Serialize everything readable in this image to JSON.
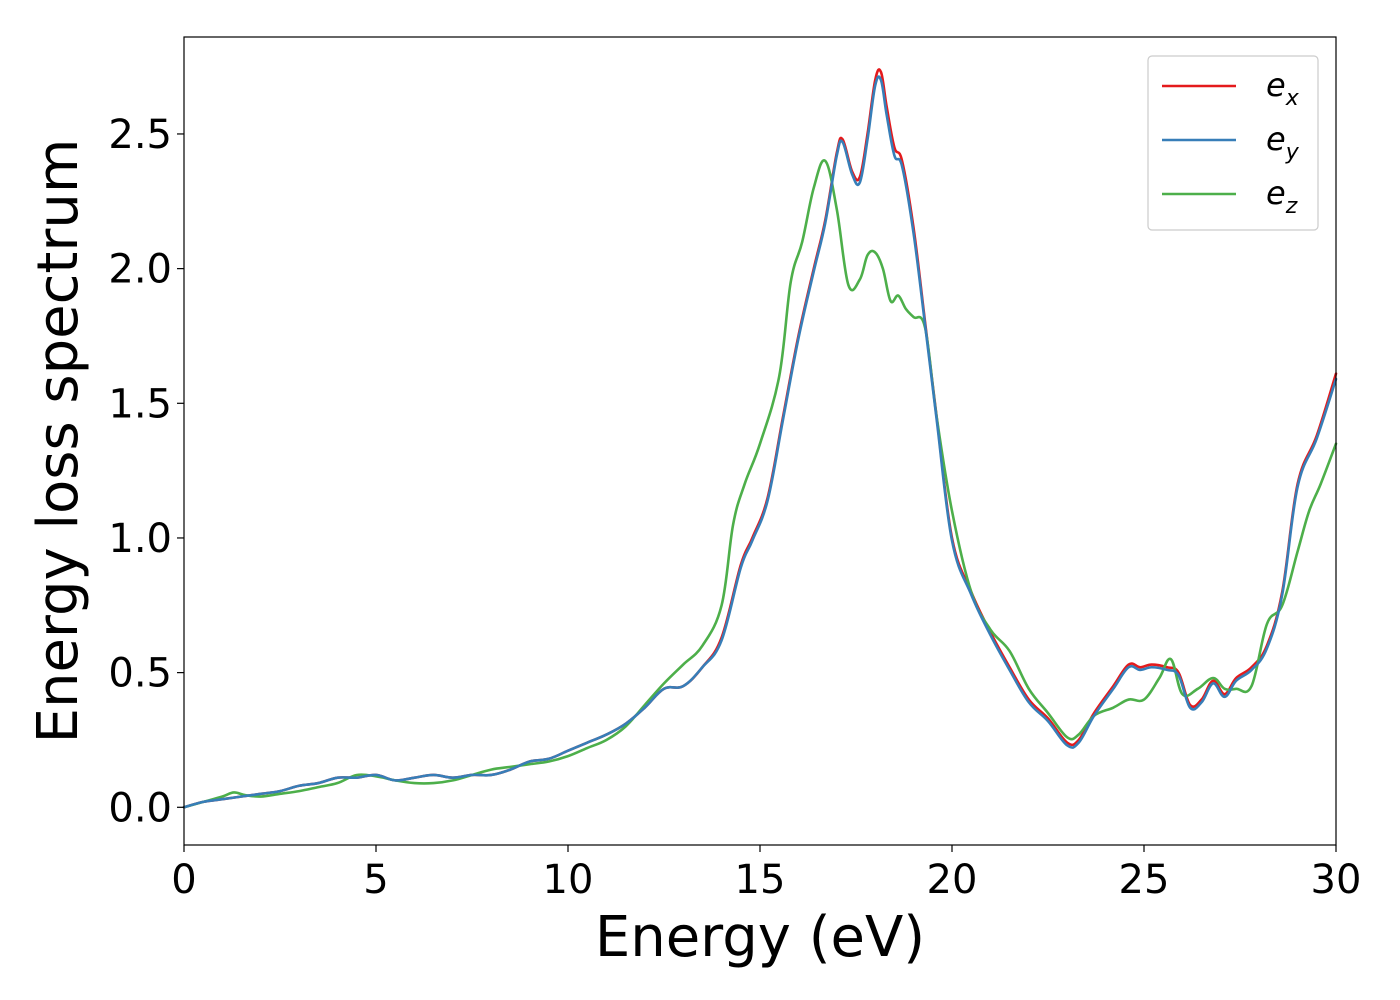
{
  "chart_data": {
    "type": "line",
    "title": "",
    "xlabel": "Energy (eV)",
    "ylabel": "Energy loss spectrum",
    "xlim": [
      0,
      30
    ],
    "ylim": [
      -0.14,
      2.86
    ],
    "xticks": [
      0,
      5,
      10,
      15,
      20,
      25,
      30
    ],
    "xtick_labels": [
      "0",
      "5",
      "10",
      "15",
      "20",
      "25",
      "30"
    ],
    "yticks": [
      0.0,
      0.5,
      1.0,
      1.5,
      2.0,
      2.5
    ],
    "ytick_labels": [
      "0.0",
      "0.5",
      "1.0",
      "1.5",
      "2.0",
      "2.5"
    ],
    "grid": false,
    "legend_position": "top-right",
    "series": [
      {
        "name": "e_x",
        "legend_base": "e",
        "legend_sub": "x",
        "color": "#e41a1c",
        "x": [
          0,
          0.5,
          1,
          1.5,
          2,
          2.5,
          3,
          3.5,
          4,
          4.5,
          5,
          5.5,
          6,
          6.5,
          7,
          7.5,
          8,
          8.5,
          9,
          9.5,
          10,
          10.5,
          11,
          11.5,
          12,
          12.5,
          13,
          13.5,
          14,
          14.5,
          14.8,
          15.2,
          15.6,
          16,
          16.4,
          16.7,
          17,
          17.15,
          17.4,
          17.6,
          17.8,
          18,
          18.15,
          18.3,
          18.5,
          18.7,
          19,
          19.3,
          19.6,
          20,
          20.5,
          21,
          21.5,
          22,
          22.5,
          23,
          23.3,
          23.7,
          24.2,
          24.6,
          24.9,
          25.2,
          25.6,
          25.9,
          26.2,
          26.5,
          26.8,
          27.1,
          27.4,
          27.8,
          28.2,
          28.6,
          29,
          29.5,
          30
        ],
        "values": [
          0,
          0.02,
          0.03,
          0.04,
          0.05,
          0.06,
          0.08,
          0.09,
          0.11,
          0.11,
          0.12,
          0.1,
          0.11,
          0.12,
          0.11,
          0.12,
          0.12,
          0.14,
          0.17,
          0.18,
          0.21,
          0.24,
          0.27,
          0.31,
          0.37,
          0.44,
          0.45,
          0.52,
          0.63,
          0.9,
          1.0,
          1.15,
          1.45,
          1.75,
          2.0,
          2.18,
          2.43,
          2.48,
          2.36,
          2.34,
          2.5,
          2.7,
          2.73,
          2.6,
          2.45,
          2.4,
          2.15,
          1.8,
          1.45,
          1.0,
          0.8,
          0.65,
          0.52,
          0.4,
          0.33,
          0.24,
          0.25,
          0.35,
          0.45,
          0.53,
          0.52,
          0.53,
          0.52,
          0.5,
          0.38,
          0.4,
          0.47,
          0.42,
          0.48,
          0.52,
          0.6,
          0.8,
          1.2,
          1.38,
          1.61
        ]
      },
      {
        "name": "e_y",
        "legend_base": "e",
        "legend_sub": "y",
        "color": "#377eb8",
        "x": [
          0,
          0.5,
          1,
          1.5,
          2,
          2.5,
          3,
          3.5,
          4,
          4.5,
          5,
          5.5,
          6,
          6.5,
          7,
          7.5,
          8,
          8.5,
          9,
          9.5,
          10,
          10.5,
          11,
          11.5,
          12,
          12.5,
          13,
          13.5,
          14,
          14.5,
          14.8,
          15.2,
          15.6,
          16,
          16.4,
          16.7,
          17,
          17.15,
          17.4,
          17.6,
          17.8,
          18,
          18.15,
          18.3,
          18.5,
          18.7,
          19,
          19.3,
          19.6,
          20,
          20.5,
          21,
          21.5,
          22,
          22.5,
          23,
          23.3,
          23.7,
          24.2,
          24.6,
          24.9,
          25.2,
          25.6,
          25.9,
          26.2,
          26.5,
          26.8,
          27.1,
          27.4,
          27.8,
          28.2,
          28.6,
          29,
          29.5,
          30
        ],
        "values": [
          0,
          0.02,
          0.03,
          0.04,
          0.05,
          0.06,
          0.08,
          0.09,
          0.11,
          0.11,
          0.12,
          0.1,
          0.11,
          0.12,
          0.11,
          0.12,
          0.12,
          0.14,
          0.17,
          0.18,
          0.21,
          0.24,
          0.27,
          0.31,
          0.37,
          0.44,
          0.45,
          0.52,
          0.62,
          0.89,
          0.99,
          1.14,
          1.44,
          1.74,
          1.99,
          2.17,
          2.42,
          2.47,
          2.35,
          2.32,
          2.48,
          2.68,
          2.7,
          2.57,
          2.42,
          2.38,
          2.13,
          1.79,
          1.44,
          0.99,
          0.79,
          0.64,
          0.51,
          0.39,
          0.32,
          0.23,
          0.24,
          0.34,
          0.44,
          0.52,
          0.51,
          0.52,
          0.51,
          0.49,
          0.37,
          0.39,
          0.46,
          0.41,
          0.47,
          0.51,
          0.59,
          0.79,
          1.19,
          1.37,
          1.59
        ]
      },
      {
        "name": "e_z",
        "legend_base": "e",
        "legend_sub": "z",
        "color": "#4daf4a",
        "x": [
          0,
          0.5,
          1,
          1.3,
          1.6,
          2,
          2.5,
          3,
          3.5,
          4,
          4.5,
          5,
          5.5,
          6,
          6.5,
          7,
          7.5,
          8,
          8.5,
          9,
          9.5,
          10,
          10.5,
          11,
          11.5,
          12,
          12.5,
          13,
          13.5,
          14,
          14.3,
          14.6,
          15,
          15.5,
          15.8,
          16.1,
          16.4,
          16.7,
          17,
          17.3,
          17.6,
          17.8,
          18,
          18.2,
          18.4,
          18.6,
          18.8,
          19,
          19.3,
          19.6,
          20,
          20.5,
          21,
          21.5,
          22,
          22.5,
          23,
          23.3,
          23.7,
          24.2,
          24.6,
          25,
          25.4,
          25.7,
          26,
          26.4,
          26.8,
          27.1,
          27.4,
          27.8,
          28.2,
          28.6,
          29,
          29.3,
          29.6,
          30
        ],
        "values": [
          0,
          0.02,
          0.04,
          0.055,
          0.045,
          0.04,
          0.05,
          0.06,
          0.075,
          0.09,
          0.12,
          0.115,
          0.1,
          0.09,
          0.09,
          0.1,
          0.12,
          0.14,
          0.15,
          0.16,
          0.17,
          0.19,
          0.22,
          0.25,
          0.3,
          0.38,
          0.46,
          0.53,
          0.6,
          0.75,
          1.05,
          1.2,
          1.35,
          1.6,
          1.95,
          2.1,
          2.3,
          2.4,
          2.22,
          1.94,
          1.96,
          2.05,
          2.06,
          2.0,
          1.88,
          1.9,
          1.85,
          1.82,
          1.78,
          1.45,
          1.1,
          0.8,
          0.66,
          0.58,
          0.44,
          0.35,
          0.26,
          0.27,
          0.34,
          0.37,
          0.4,
          0.4,
          0.48,
          0.55,
          0.42,
          0.44,
          0.48,
          0.44,
          0.44,
          0.45,
          0.68,
          0.75,
          0.95,
          1.1,
          1.2,
          1.35
        ]
      }
    ]
  }
}
